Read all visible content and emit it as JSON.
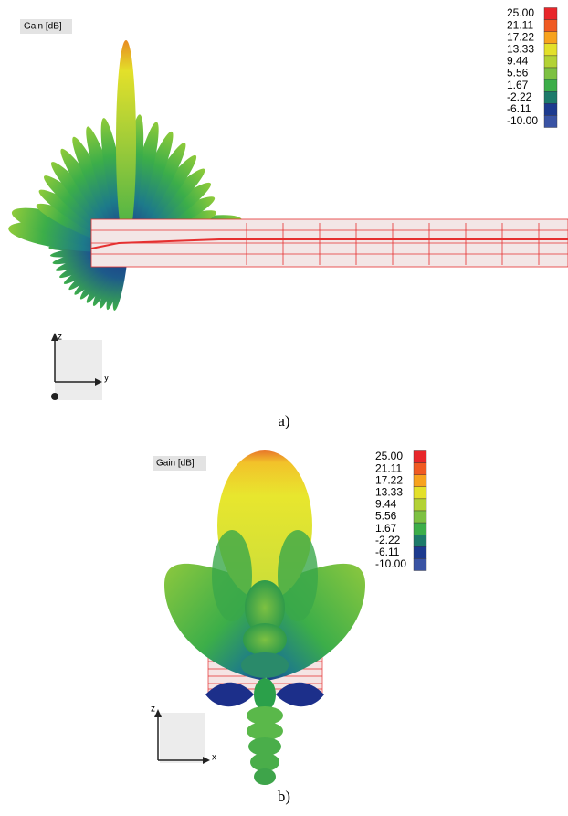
{
  "panels": [
    {
      "title": "Gain [dB]",
      "legend": [
        {
          "label": "25.00",
          "color": "#e8262a"
        },
        {
          "label": "21.11",
          "color": "#f05a22"
        },
        {
          "label": "17.22",
          "color": "#f7a21d"
        },
        {
          "label": "13.33",
          "color": "#e3e02a"
        },
        {
          "label": "9.44",
          "color": "#b3d235"
        },
        {
          "label": "5.56",
          "color": "#7dc142"
        },
        {
          "label": "1.67",
          "color": "#3cae49"
        },
        {
          "label": "-2.22",
          "color": "#1d7a6a"
        },
        {
          "label": "-6.11",
          "color": "#1c3a8f"
        },
        {
          "label": "-10.00",
          "color": "#3953a4"
        }
      ],
      "axes": [
        "z",
        "y"
      ],
      "caption": "a)"
    },
    {
      "title": "Gain [dB]",
      "legend": [
        {
          "label": "25.00",
          "color": "#e8262a"
        },
        {
          "label": "21.11",
          "color": "#f05a22"
        },
        {
          "label": "17.22",
          "color": "#f7a21d"
        },
        {
          "label": "13.33",
          "color": "#e3e02a"
        },
        {
          "label": "9.44",
          "color": "#b3d235"
        },
        {
          "label": "5.56",
          "color": "#7dc142"
        },
        {
          "label": "1.67",
          "color": "#3cae49"
        },
        {
          "label": "-2.22",
          "color": "#1d7a6a"
        },
        {
          "label": "-6.11",
          "color": "#1c3a8f"
        },
        {
          "label": "-10.00",
          "color": "#3953a4"
        }
      ],
      "axes": [
        "z",
        "x"
      ],
      "caption": "b)"
    }
  ]
}
